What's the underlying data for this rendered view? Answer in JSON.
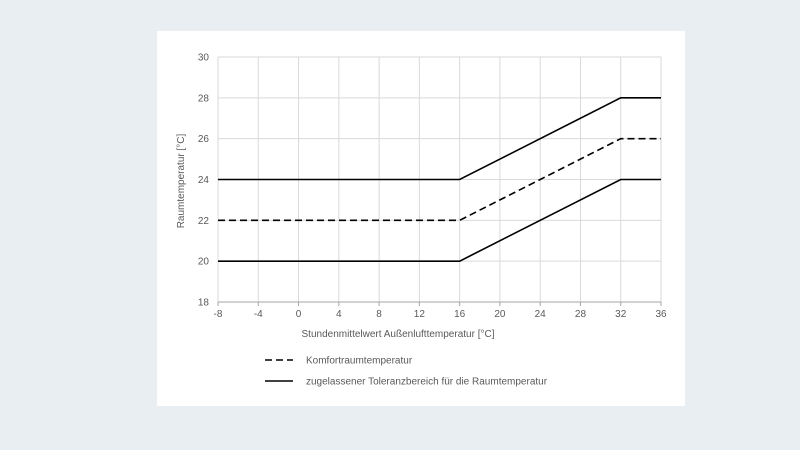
{
  "chart_data": {
    "type": "line",
    "xlabel": "Stundenmittelwert  Außenlufttemperatur  [°C]",
    "ylabel": "Raumtemperatur  [°C]",
    "xlim": [
      -8,
      36
    ],
    "ylim": [
      18,
      30
    ],
    "x_ticks": [
      -8,
      -4,
      0,
      4,
      8,
      12,
      16,
      20,
      24,
      28,
      32,
      36
    ],
    "y_ticks": [
      18,
      20,
      22,
      24,
      26,
      28,
      30
    ],
    "grid": true,
    "legend_position": "bottom",
    "series": [
      {
        "name": "Komfortraumtemperatur",
        "style": "dashed",
        "color": "#000000",
        "x": [
          -8,
          16,
          32,
          36
        ],
        "y": [
          22,
          22,
          26,
          26
        ]
      },
      {
        "name": "zugelassener Toleranzbereich für die Raumtemperatur",
        "style": "solid",
        "color": "#000000",
        "x": [
          -8,
          16,
          32,
          36
        ],
        "y": [
          24,
          24,
          28,
          28
        ]
      },
      {
        "name": "",
        "style": "solid",
        "color": "#000000",
        "x": [
          -8,
          16,
          32,
          36
        ],
        "y": [
          20,
          20,
          24,
          24
        ]
      }
    ]
  }
}
